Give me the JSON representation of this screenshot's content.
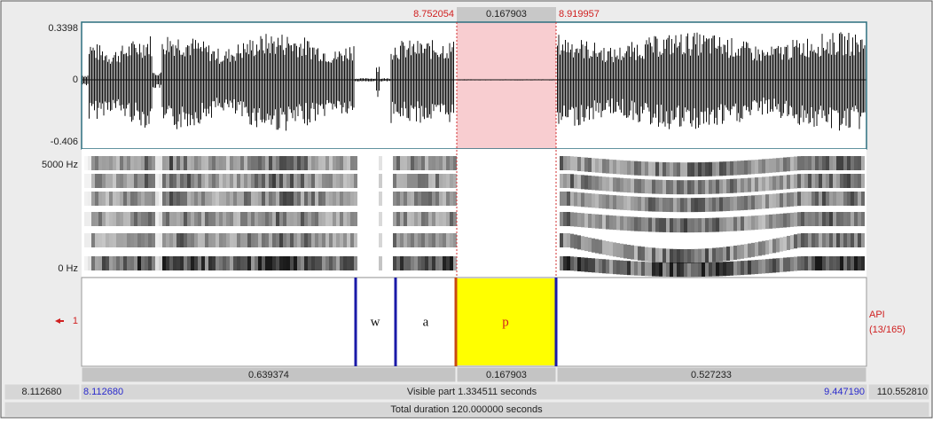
{
  "selection": {
    "start": "8.752054",
    "duration": "0.167903",
    "end": "8.919957"
  },
  "waveform": {
    "max": "0.3398",
    "zero": "0",
    "min": "-0.406"
  },
  "spectrogram": {
    "max": "5000 Hz",
    "min": "0 Hz"
  },
  "tier": {
    "number": "1",
    "name": "API",
    "count": "(13/165)",
    "intervals": [
      {
        "label": "w"
      },
      {
        "label": "a"
      },
      {
        "label": "p"
      }
    ]
  },
  "durations": [
    "0.639374",
    "0.167903",
    "0.527233"
  ],
  "window": {
    "start_total": "8.112680",
    "start_visible": "8.112680",
    "visible": "Visible part 1.334511 seconds",
    "end_visible": "9.447190",
    "end_total": "110.552810"
  },
  "total": "Total duration 120.000000 seconds"
}
